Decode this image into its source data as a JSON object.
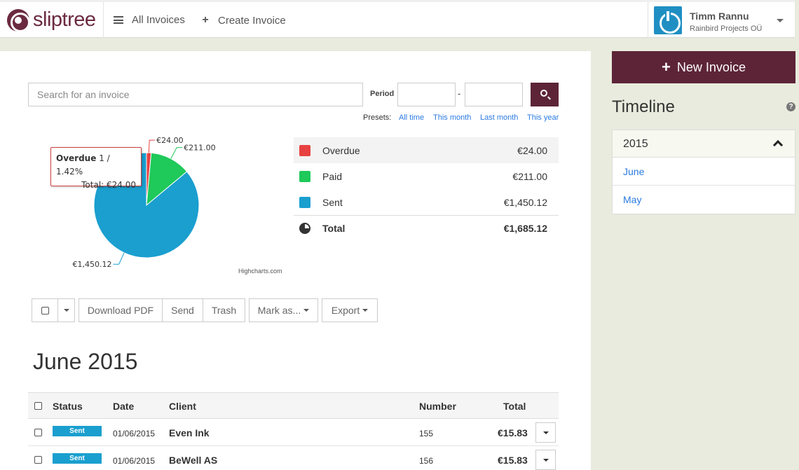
{
  "header": {
    "logo_text": "sliptree",
    "nav": [
      {
        "label": "All Invoices",
        "icon": "list-icon"
      },
      {
        "label": "Create Invoice",
        "icon": "plus-icon"
      }
    ],
    "user": {
      "name": "Timm Rannu",
      "company": "Rainbird Projects OÜ"
    }
  },
  "search": {
    "placeholder": "Search for an invoice",
    "period_label": "Period",
    "period_from": "",
    "period_to": "",
    "dash": "-",
    "presets_label": "Presets:",
    "presets": [
      "All time",
      "This month",
      "Last month",
      "This year"
    ]
  },
  "chart_data": {
    "type": "pie",
    "slices": [
      {
        "name": "Overdue",
        "value": 24.0,
        "label": "€24.00",
        "color": "#e84141"
      },
      {
        "name": "Paid",
        "value": 211.0,
        "label": "€211.00",
        "color": "#1fc95a"
      },
      {
        "name": "Sent",
        "value": 1450.12,
        "label": "€1,450.12",
        "color": "#1a9fcf"
      }
    ],
    "tooltip": {
      "series": "Overdue",
      "count_text": "1 / 1.42%",
      "total_text": "Total: €24.00"
    },
    "credits": "Highcharts.com"
  },
  "summary": {
    "rows": [
      {
        "label": "Overdue",
        "amount": "€24.00",
        "color": "#e84141"
      },
      {
        "label": "Paid",
        "amount": "€211.00",
        "color": "#1fc95a"
      },
      {
        "label": "Sent",
        "amount": "€1,450.12",
        "color": "#1a9fcf"
      }
    ],
    "total_label": "Total",
    "total_amount": "€1,685.12"
  },
  "toolbar": {
    "download_pdf": "Download PDF",
    "send": "Send",
    "trash": "Trash",
    "mark_as": "Mark as...",
    "export": "Export"
  },
  "month_title": "June 2015",
  "invoice_table": {
    "columns": {
      "status": "Status",
      "date": "Date",
      "client": "Client",
      "number": "Number",
      "total": "Total"
    },
    "rows": [
      {
        "status": "Sent",
        "date": "01/06/2015",
        "client": "Even Ink",
        "number": "155",
        "total": "€15.83"
      },
      {
        "status": "Sent",
        "date": "01/06/2015",
        "client": "BeWell AS",
        "number": "156",
        "total": "€15.83"
      }
    ]
  },
  "sidebar": {
    "new_invoice": "New Invoice",
    "timeline_title": "Timeline",
    "help": "?",
    "year": "2015",
    "months": [
      "June",
      "May"
    ]
  },
  "colors": {
    "brand": "#5d2438",
    "link": "#2a7ae2",
    "sent": "#1a9fcf",
    "paid": "#1fc95a",
    "overdue": "#e84141"
  }
}
